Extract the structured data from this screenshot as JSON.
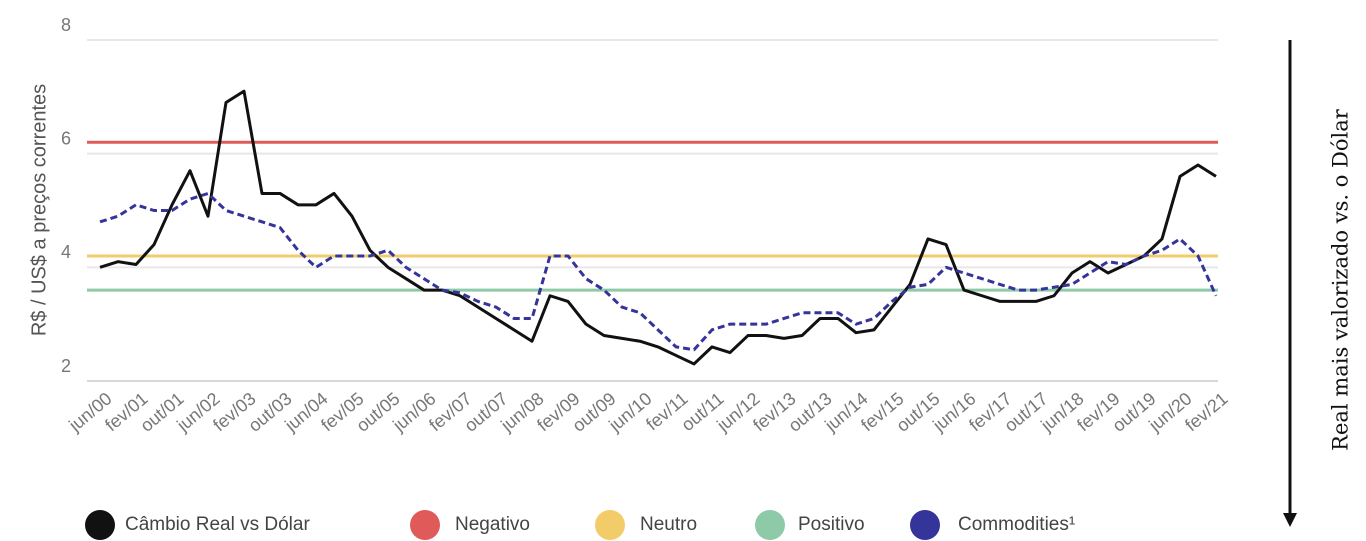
{
  "chart_data": {
    "type": "line",
    "y_label": "R$ / US$ a preços correntes",
    "annotation": "Real mais valorizado vs. o Dólar",
    "categories": [
      "jun/00",
      null,
      "fev/01",
      null,
      "out/01",
      null,
      "jun/02",
      null,
      "fev/03",
      null,
      "out/03",
      null,
      "jun/04",
      null,
      "fev/05",
      null,
      "out/05",
      null,
      "jun/06",
      null,
      "fev/07",
      null,
      "out/07",
      null,
      "jun/08",
      null,
      "fev/09",
      null,
      "out/09",
      null,
      "jun/10",
      null,
      "fev/11",
      null,
      "out/11",
      null,
      "jun/12",
      null,
      "fev/13",
      null,
      "out/13",
      null,
      "jun/14",
      null,
      "fev/15",
      null,
      "out/15",
      null,
      "jun/16",
      null,
      "fev/17",
      null,
      "out/17",
      null,
      "jun/18",
      null,
      "fev/19",
      null,
      "out/19",
      null,
      "jun/20",
      null,
      "fev/21"
    ],
    "ylim": [
      2,
      8
    ],
    "yticks": [
      2,
      4,
      6,
      8
    ],
    "grid": true,
    "series": [
      {
        "name": "Câmbio Real vs Dólar",
        "color": "#111111",
        "values": [
          4.0,
          4.1,
          4.05,
          4.4,
          5.1,
          5.7,
          4.9,
          6.9,
          7.1,
          5.3,
          5.3,
          5.1,
          5.1,
          5.3,
          4.9,
          4.3,
          4.0,
          3.8,
          3.6,
          3.6,
          3.5,
          3.3,
          3.1,
          2.9,
          2.7,
          3.5,
          3.4,
          3.0,
          2.8,
          2.75,
          2.7,
          2.6,
          2.45,
          2.3,
          2.6,
          2.5,
          2.8,
          2.8,
          2.75,
          2.8,
          3.1,
          3.1,
          2.85,
          2.9,
          3.3,
          3.7,
          4.5,
          4.4,
          3.6,
          3.5,
          3.4,
          3.4,
          3.4,
          3.5,
          3.9,
          4.1,
          3.9,
          4.05,
          4.2,
          4.5,
          5.6,
          5.8,
          5.6
        ]
      },
      {
        "name": "Negativo",
        "color": "#e05a5a",
        "value": 6.2
      },
      {
        "name": "Neutro",
        "color": "#f3cc6a",
        "value": 4.2
      },
      {
        "name": "Positivo",
        "color": "#8ec9a8",
        "value": 3.6
      },
      {
        "name": "Commodities¹",
        "color": "#34349a",
        "dashed": true,
        "values": [
          4.8,
          4.9,
          5.1,
          5.0,
          5.0,
          5.2,
          5.3,
          5.0,
          4.9,
          4.8,
          4.7,
          4.3,
          4.0,
          4.2,
          4.2,
          4.2,
          4.3,
          4.0,
          3.8,
          3.6,
          3.55,
          3.4,
          3.3,
          3.1,
          3.1,
          4.2,
          4.2,
          3.8,
          3.6,
          3.3,
          3.2,
          2.9,
          2.6,
          2.55,
          2.9,
          3.0,
          3.0,
          3.0,
          3.1,
          3.2,
          3.2,
          3.2,
          3.0,
          3.1,
          3.4,
          3.65,
          3.7,
          4.0,
          3.9,
          3.8,
          3.7,
          3.6,
          3.6,
          3.65,
          3.7,
          3.9,
          4.1,
          4.05,
          4.2,
          4.3,
          4.5,
          4.2,
          3.5
        ]
      }
    ]
  }
}
